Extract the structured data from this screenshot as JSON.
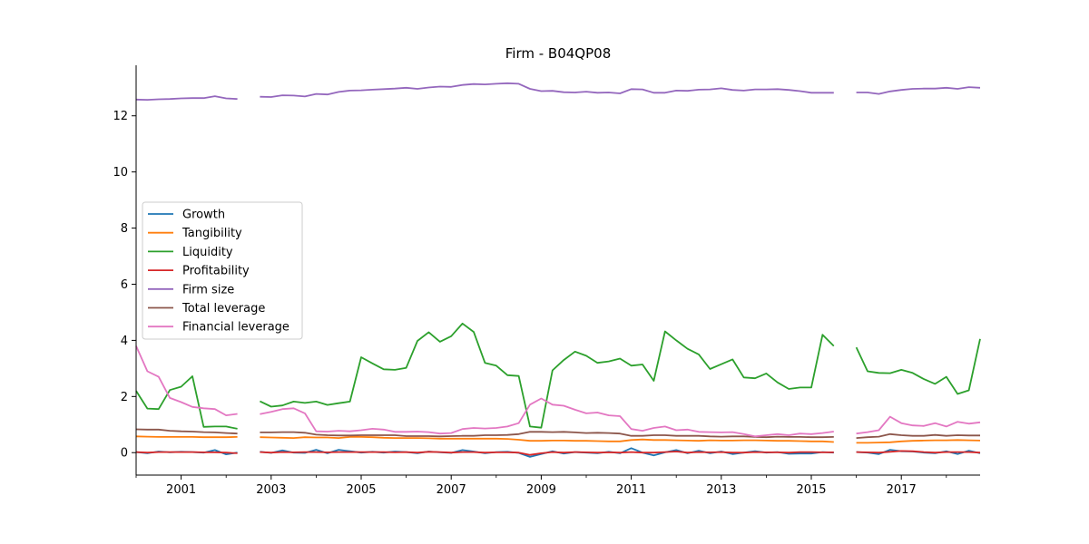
{
  "chart_data": {
    "type": "line",
    "title": "Firm - B04QP08",
    "xlabel": "",
    "ylabel": "",
    "xlim": [
      2000.0,
      2018.75
    ],
    "ylim": [
      -0.8,
      13.8
    ],
    "x_ticks": [
      2001,
      2003,
      2005,
      2007,
      2009,
      2011,
      2013,
      2015,
      2017
    ],
    "y_ticks": [
      0,
      2,
      4,
      6,
      8,
      10,
      12
    ],
    "grid": false,
    "legend_position": "center-left",
    "x": [
      2000.0,
      2000.25,
      2000.5,
      2000.75,
      2001.0,
      2001.25,
      2001.5,
      2001.75,
      2002.0,
      2002.25,
      2002.5,
      2002.75,
      2003.0,
      2003.25,
      2003.5,
      2003.75,
      2004.0,
      2004.25,
      2004.5,
      2004.75,
      2005.0,
      2005.25,
      2005.5,
      2005.75,
      2006.0,
      2006.25,
      2006.5,
      2006.75,
      2007.0,
      2007.25,
      2007.5,
      2007.75,
      2008.0,
      2008.25,
      2008.5,
      2008.75,
      2009.0,
      2009.25,
      2009.5,
      2009.75,
      2010.0,
      2010.25,
      2010.5,
      2010.75,
      2011.0,
      2011.25,
      2011.5,
      2011.75,
      2012.0,
      2012.25,
      2012.5,
      2012.75,
      2013.0,
      2013.25,
      2013.5,
      2013.75,
      2014.0,
      2014.25,
      2014.5,
      2014.75,
      2015.0,
      2015.25,
      2015.5,
      2015.75,
      2016.0,
      2016.25,
      2016.5,
      2016.75,
      2017.0,
      2017.25,
      2017.5,
      2017.75,
      2018.0,
      2018.25,
      2018.5,
      2018.75
    ],
    "series": [
      {
        "name": "Growth",
        "color": "#1f77b4",
        "values": [
          0.02,
          -0.02,
          0.04,
          0.01,
          0.03,
          0.02,
          0.0,
          0.09,
          -0.06,
          0.0,
          null,
          0.03,
          -0.01,
          0.08,
          0.0,
          -0.01,
          0.1,
          -0.02,
          0.1,
          0.05,
          0.0,
          0.03,
          0.0,
          0.04,
          0.02,
          -0.02,
          0.04,
          0.01,
          -0.01,
          0.09,
          0.04,
          -0.02,
          0.02,
          0.03,
          -0.01,
          -0.15,
          -0.05,
          0.05,
          -0.03,
          0.02,
          0.0,
          -0.02,
          0.03,
          -0.02,
          0.16,
          0.0,
          -0.1,
          0.01,
          0.09,
          -0.02,
          0.07,
          -0.02,
          0.04,
          -0.05,
          0.0,
          0.05,
          0.0,
          0.02,
          -0.04,
          -0.03,
          -0.03,
          0.02,
          0.0,
          null,
          0.02,
          0.0,
          -0.05,
          0.1,
          0.05,
          0.04,
          0.0,
          -0.02,
          0.05,
          -0.05,
          0.07,
          -0.02
        ]
      },
      {
        "name": "Tangibility",
        "color": "#ff7f0e",
        "values": [
          0.58,
          0.57,
          0.56,
          0.56,
          0.56,
          0.56,
          0.55,
          0.55,
          0.55,
          0.56,
          null,
          0.55,
          0.54,
          0.53,
          0.52,
          0.55,
          0.54,
          0.54,
          0.52,
          0.56,
          0.56,
          0.55,
          0.53,
          0.52,
          0.52,
          0.52,
          0.51,
          0.5,
          0.5,
          0.5,
          0.5,
          0.5,
          0.5,
          0.49,
          0.46,
          0.42,
          0.42,
          0.43,
          0.43,
          0.42,
          0.42,
          0.41,
          0.4,
          0.4,
          0.45,
          0.47,
          0.45,
          0.45,
          0.44,
          0.43,
          0.42,
          0.44,
          0.43,
          0.43,
          0.44,
          0.44,
          0.43,
          0.42,
          0.42,
          0.41,
          0.4,
          0.4,
          0.38,
          null,
          0.35,
          0.35,
          0.36,
          0.37,
          0.4,
          0.42,
          0.43,
          0.44,
          0.44,
          0.45,
          0.44,
          0.43
        ]
      },
      {
        "name": "Liquidity",
        "color": "#2ca02c",
        "values": [
          2.2,
          1.57,
          1.55,
          2.23,
          2.35,
          2.72,
          0.92,
          0.93,
          0.93,
          0.85,
          null,
          1.83,
          1.64,
          1.68,
          1.82,
          1.77,
          1.82,
          1.7,
          1.76,
          1.82,
          3.4,
          3.18,
          2.97,
          2.95,
          3.02,
          3.98,
          4.29,
          3.95,
          4.15,
          4.6,
          4.3,
          3.2,
          3.1,
          2.76,
          2.73,
          0.93,
          0.89,
          2.93,
          3.3,
          3.6,
          3.45,
          3.2,
          3.25,
          3.35,
          3.1,
          3.14,
          2.56,
          4.32,
          4.0,
          3.7,
          3.5,
          2.98,
          3.15,
          3.32,
          2.68,
          2.65,
          2.82,
          2.5,
          2.27,
          2.32,
          2.32,
          4.2,
          3.8,
          null,
          3.75,
          2.9,
          2.84,
          2.83,
          2.95,
          2.84,
          2.62,
          2.45,
          2.7,
          2.09,
          2.22,
          4.05
        ]
      },
      {
        "name": "Profitability",
        "color": "#d62728",
        "values": [
          0.02,
          0.0,
          0.02,
          0.02,
          0.02,
          0.02,
          0.01,
          0.01,
          0.0,
          -0.02,
          null,
          0.02,
          0.0,
          0.02,
          0.01,
          0.02,
          0.02,
          0.01,
          0.02,
          0.02,
          0.02,
          0.02,
          0.02,
          0.01,
          0.02,
          0.0,
          0.03,
          0.02,
          0.0,
          0.02,
          0.02,
          0.0,
          0.01,
          0.01,
          0.0,
          -0.08,
          -0.02,
          0.02,
          0.0,
          0.02,
          0.01,
          0.0,
          0.01,
          0.0,
          0.02,
          0.0,
          0.0,
          0.02,
          0.04,
          0.0,
          0.02,
          0.01,
          0.02,
          0.0,
          0.0,
          0.02,
          0.01,
          0.01,
          0.0,
          0.02,
          0.02,
          0.01,
          0.01,
          null,
          0.02,
          0.01,
          0.0,
          0.03,
          0.06,
          0.05,
          0.02,
          0.0,
          0.02,
          0.02,
          0.02,
          0.0
        ]
      },
      {
        "name": "Firm size",
        "color": "#9467bd",
        "values": [
          12.58,
          12.57,
          12.59,
          12.6,
          12.62,
          12.63,
          12.63,
          12.7,
          12.62,
          12.6,
          null,
          12.68,
          12.67,
          12.73,
          12.72,
          12.69,
          12.78,
          12.76,
          12.85,
          12.9,
          12.91,
          12.93,
          12.95,
          12.97,
          13.0,
          12.96,
          13.01,
          13.04,
          13.03,
          13.1,
          13.13,
          13.12,
          13.14,
          13.16,
          13.14,
          12.96,
          12.88,
          12.89,
          12.84,
          12.83,
          12.86,
          12.82,
          12.83,
          12.8,
          12.95,
          12.94,
          12.82,
          12.82,
          12.9,
          12.89,
          12.93,
          12.94,
          12.98,
          12.92,
          12.9,
          12.94,
          12.94,
          12.95,
          12.92,
          12.88,
          12.82,
          12.82,
          12.82,
          null,
          12.83,
          12.83,
          12.78,
          12.87,
          12.92,
          12.96,
          12.97,
          12.97,
          13.0,
          12.96,
          13.02,
          13.0
        ]
      },
      {
        "name": "Total leverage",
        "color": "#8c564b",
        "values": [
          0.83,
          0.82,
          0.82,
          0.78,
          0.76,
          0.75,
          0.73,
          0.72,
          0.7,
          0.68,
          null,
          0.72,
          0.72,
          0.73,
          0.73,
          0.71,
          0.64,
          0.62,
          0.61,
          0.61,
          0.62,
          0.62,
          0.62,
          0.62,
          0.59,
          0.59,
          0.59,
          0.58,
          0.59,
          0.6,
          0.6,
          0.62,
          0.62,
          0.63,
          0.66,
          0.74,
          0.74,
          0.73,
          0.74,
          0.72,
          0.7,
          0.71,
          0.7,
          0.68,
          0.6,
          0.6,
          0.62,
          0.62,
          0.6,
          0.6,
          0.6,
          0.58,
          0.57,
          0.58,
          0.58,
          0.56,
          0.55,
          0.57,
          0.56,
          0.56,
          0.55,
          0.55,
          0.56,
          null,
          0.52,
          0.55,
          0.57,
          0.66,
          0.62,
          0.6,
          0.6,
          0.63,
          0.6,
          0.62,
          0.61,
          0.61
        ]
      },
      {
        "name": "Financial leverage",
        "color": "#e377c2",
        "values": [
          3.8,
          2.9,
          2.7,
          1.95,
          1.8,
          1.63,
          1.58,
          1.55,
          1.33,
          1.38,
          null,
          1.37,
          1.45,
          1.55,
          1.58,
          1.4,
          0.76,
          0.75,
          0.78,
          0.76,
          0.8,
          0.85,
          0.82,
          0.74,
          0.74,
          0.75,
          0.73,
          0.68,
          0.7,
          0.84,
          0.88,
          0.86,
          0.88,
          0.93,
          1.05,
          1.71,
          1.93,
          1.71,
          1.67,
          1.53,
          1.4,
          1.43,
          1.33,
          1.3,
          0.84,
          0.78,
          0.88,
          0.93,
          0.8,
          0.82,
          0.74,
          0.73,
          0.72,
          0.73,
          0.66,
          0.58,
          0.62,
          0.66,
          0.62,
          0.68,
          0.66,
          0.7,
          0.75,
          null,
          0.68,
          0.73,
          0.8,
          1.28,
          1.05,
          0.97,
          0.95,
          1.05,
          0.93,
          1.1,
          1.03,
          1.08
        ]
      }
    ]
  }
}
